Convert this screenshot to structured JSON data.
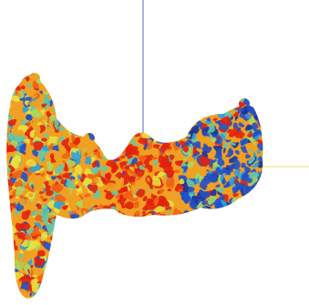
{
  "viewer": {
    "background_color": "#ffffff",
    "axes": {
      "vertical_axis_color": "#5060d8",
      "horizontal_axis_color": "#e8e070"
    },
    "surface_palette": [
      "#e02010",
      "#f06018",
      "#f0a020",
      "#e8e040",
      "#a8d860",
      "#60c8a8",
      "#30a0d8",
      "#2050c8",
      "#1830a0"
    ],
    "model": "molecular-surface"
  }
}
